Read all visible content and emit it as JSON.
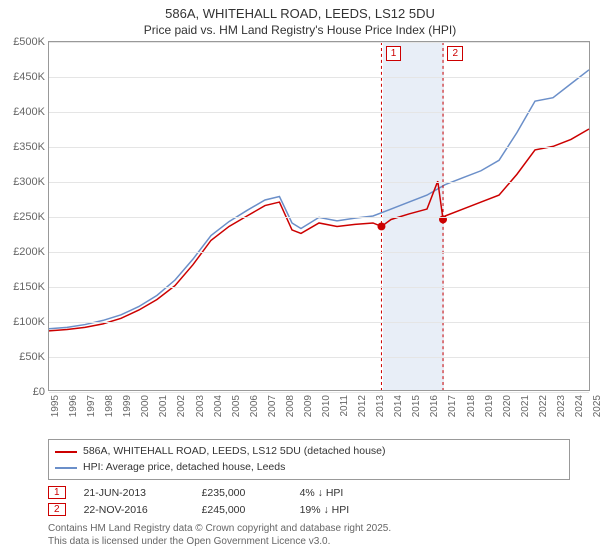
{
  "title_line1": "586A, WHITEHALL ROAD, LEEDS, LS12 5DU",
  "title_line2": "Price paid vs. HM Land Registry's House Price Index (HPI)",
  "chart": {
    "type": "line",
    "background_color": "#ffffff",
    "grid_color": "#e5e5e5",
    "border_color": "#999999",
    "x": {
      "min": 1995,
      "max": 2025,
      "ticks": [
        1995,
        1996,
        1997,
        1998,
        1999,
        2000,
        2001,
        2002,
        2003,
        2004,
        2005,
        2006,
        2007,
        2008,
        2009,
        2010,
        2011,
        2012,
        2013,
        2014,
        2015,
        2016,
        2017,
        2018,
        2019,
        2020,
        2021,
        2022,
        2023,
        2024,
        2025
      ]
    },
    "y": {
      "min": 0,
      "max": 500000,
      "ticks": [
        0,
        50000,
        100000,
        150000,
        200000,
        250000,
        300000,
        350000,
        400000,
        450000,
        500000
      ],
      "tick_labels": [
        "£0",
        "£50K",
        "£100K",
        "£150K",
        "£200K",
        "£250K",
        "£300K",
        "£350K",
        "£400K",
        "£450K",
        "£500K"
      ]
    },
    "series": [
      {
        "id": "price_paid",
        "color": "#cc0000",
        "width": 1.5,
        "label": "586A, WHITEHALL ROAD, LEEDS, LS12 5DU (detached house)",
        "data": [
          [
            1995,
            85000
          ],
          [
            1996,
            87000
          ],
          [
            1997,
            90000
          ],
          [
            1998,
            95000
          ],
          [
            1999,
            103000
          ],
          [
            2000,
            115000
          ],
          [
            2001,
            130000
          ],
          [
            2002,
            150000
          ],
          [
            2003,
            180000
          ],
          [
            2004,
            215000
          ],
          [
            2005,
            235000
          ],
          [
            2006,
            250000
          ],
          [
            2007,
            265000
          ],
          [
            2007.8,
            270000
          ],
          [
            2008.5,
            230000
          ],
          [
            2009,
            225000
          ],
          [
            2010,
            240000
          ],
          [
            2011,
            235000
          ],
          [
            2012,
            238000
          ],
          [
            2013,
            240000
          ],
          [
            2013.47,
            235000
          ],
          [
            2014,
            245000
          ],
          [
            2015,
            253000
          ],
          [
            2016,
            260000
          ],
          [
            2016.6,
            300000
          ],
          [
            2016.89,
            245000
          ],
          [
            2017,
            250000
          ],
          [
            2018,
            260000
          ],
          [
            2019,
            270000
          ],
          [
            2020,
            280000
          ],
          [
            2021,
            310000
          ],
          [
            2022,
            345000
          ],
          [
            2023,
            350000
          ],
          [
            2024,
            360000
          ],
          [
            2025,
            375000
          ]
        ]
      },
      {
        "id": "hpi",
        "color": "#6b8fc9",
        "width": 1.5,
        "label": "HPI: Average price, detached house, Leeds",
        "data": [
          [
            1995,
            88000
          ],
          [
            1996,
            90000
          ],
          [
            1997,
            94000
          ],
          [
            1998,
            100000
          ],
          [
            1999,
            108000
          ],
          [
            2000,
            120000
          ],
          [
            2001,
            136000
          ],
          [
            2002,
            158000
          ],
          [
            2003,
            188000
          ],
          [
            2004,
            222000
          ],
          [
            2005,
            242000
          ],
          [
            2006,
            258000
          ],
          [
            2007,
            273000
          ],
          [
            2007.8,
            278000
          ],
          [
            2008.5,
            240000
          ],
          [
            2009,
            232000
          ],
          [
            2010,
            248000
          ],
          [
            2011,
            243000
          ],
          [
            2012,
            247000
          ],
          [
            2013,
            250000
          ],
          [
            2014,
            260000
          ],
          [
            2015,
            270000
          ],
          [
            2016,
            280000
          ],
          [
            2017,
            295000
          ],
          [
            2018,
            305000
          ],
          [
            2019,
            315000
          ],
          [
            2020,
            330000
          ],
          [
            2021,
            370000
          ],
          [
            2022,
            415000
          ],
          [
            2023,
            420000
          ],
          [
            2024,
            440000
          ],
          [
            2025,
            460000
          ]
        ]
      }
    ],
    "markers": [
      {
        "x": 2013.47,
        "y": 235000,
        "color": "#cc0000",
        "r": 4
      },
      {
        "x": 2016.89,
        "y": 245000,
        "color": "#cc0000",
        "r": 4
      }
    ],
    "events": [
      {
        "n": "1",
        "x": 2013.47,
        "color": "#cc0000",
        "date": "21-JUN-2013",
        "price": "£235,000",
        "delta": "4% ↓ HPI"
      },
      {
        "n": "2",
        "x": 2016.89,
        "color": "#cc0000",
        "date": "22-NOV-2016",
        "price": "£245,000",
        "delta": "19% ↓ HPI"
      }
    ],
    "event_band": {
      "from": 2013.47,
      "to": 2016.89,
      "color": "#e8eef7"
    }
  },
  "footer_line1": "Contains HM Land Registry data © Crown copyright and database right 2025.",
  "footer_line2": "This data is licensed under the Open Government Licence v3.0.",
  "legend_border": "#999999",
  "event_box_border": "#cc0000",
  "text_color": "#666666",
  "tick_fontsize": 11,
  "xtick_fontsize": 10,
  "title_fontsize": 13,
  "legend_fontsize": 10.5
}
